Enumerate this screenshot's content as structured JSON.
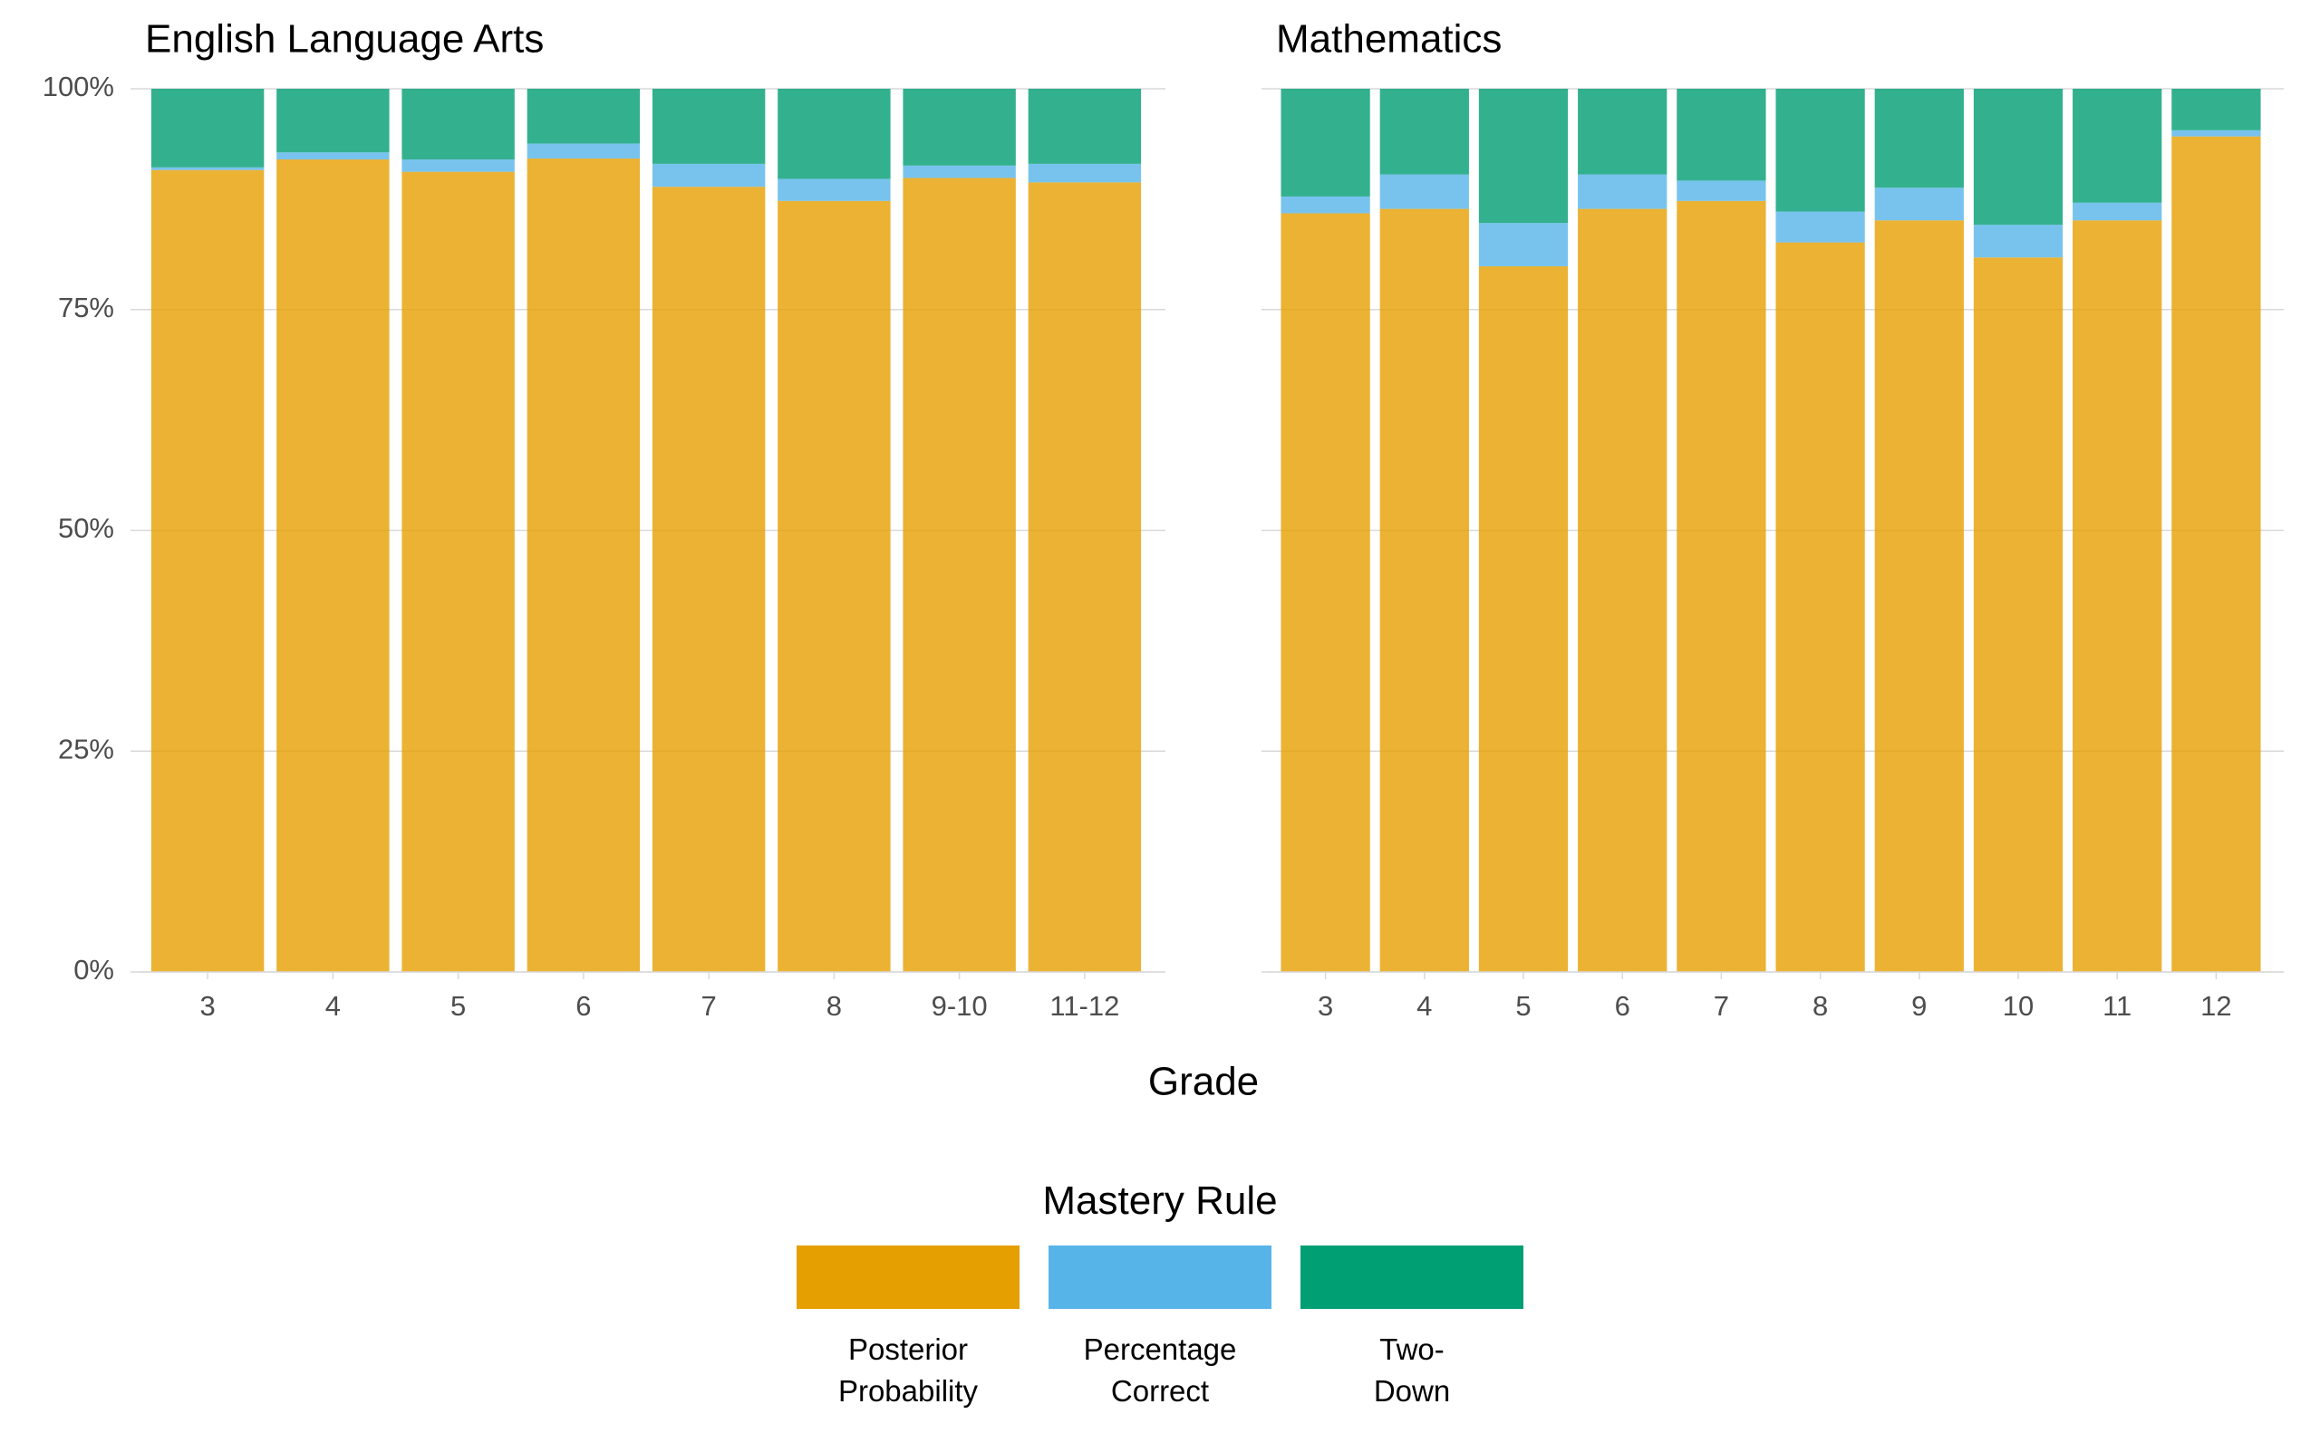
{
  "chart_data": [
    {
      "type": "bar",
      "stacked": true,
      "title": "English Language Arts",
      "categories": [
        "3",
        "4",
        "5",
        "6",
        "7",
        "8",
        "9-10",
        "11-12"
      ],
      "series": [
        {
          "name": "Posterior Probability",
          "color": "#E69F00",
          "values": [
            90.8,
            92.0,
            90.6,
            92.1,
            88.9,
            87.3,
            89.9,
            89.4
          ]
        },
        {
          "name": "Percentage Correct",
          "color": "#56B4E9",
          "values": [
            0.3,
            0.8,
            1.4,
            1.7,
            2.6,
            2.5,
            1.4,
            2.1
          ]
        },
        {
          "name": "Two-Down",
          "color": "#009E73",
          "values": [
            8.9,
            7.2,
            8.0,
            6.2,
            8.5,
            10.2,
            8.7,
            8.5
          ]
        }
      ],
      "ylim": [
        0,
        100
      ],
      "yticks": [
        {
          "value": 0,
          "label": "0%"
        },
        {
          "value": 25,
          "label": "25%"
        },
        {
          "value": 50,
          "label": "50%"
        },
        {
          "value": 75,
          "label": "75%"
        },
        {
          "value": 100,
          "label": "100%"
        }
      ],
      "grid": true
    },
    {
      "type": "bar",
      "stacked": true,
      "title": "Mathematics",
      "categories": [
        "3",
        "4",
        "5",
        "6",
        "7",
        "8",
        "9",
        "10",
        "11",
        "12"
      ],
      "series": [
        {
          "name": "Posterior Probability",
          "color": "#E69F00",
          "values": [
            85.9,
            86.4,
            79.9,
            86.4,
            87.3,
            82.6,
            85.1,
            80.9,
            85.1,
            94.6
          ]
        },
        {
          "name": "Percentage Correct",
          "color": "#56B4E9",
          "values": [
            1.9,
            3.9,
            4.9,
            3.9,
            2.3,
            3.5,
            3.7,
            3.7,
            2.0,
            0.7
          ]
        },
        {
          "name": "Two-Down",
          "color": "#009E73",
          "values": [
            12.2,
            9.7,
            15.2,
            9.7,
            10.4,
            13.9,
            11.2,
            15.4,
            12.9,
            4.7
          ]
        }
      ],
      "ylim": [
        0,
        100
      ],
      "yticks": [
        0,
        25,
        50,
        75,
        100
      ],
      "grid": true
    }
  ],
  "xlabel": "Grade",
  "legend": {
    "title": "Mastery Rule",
    "position": "bottom"
  }
}
